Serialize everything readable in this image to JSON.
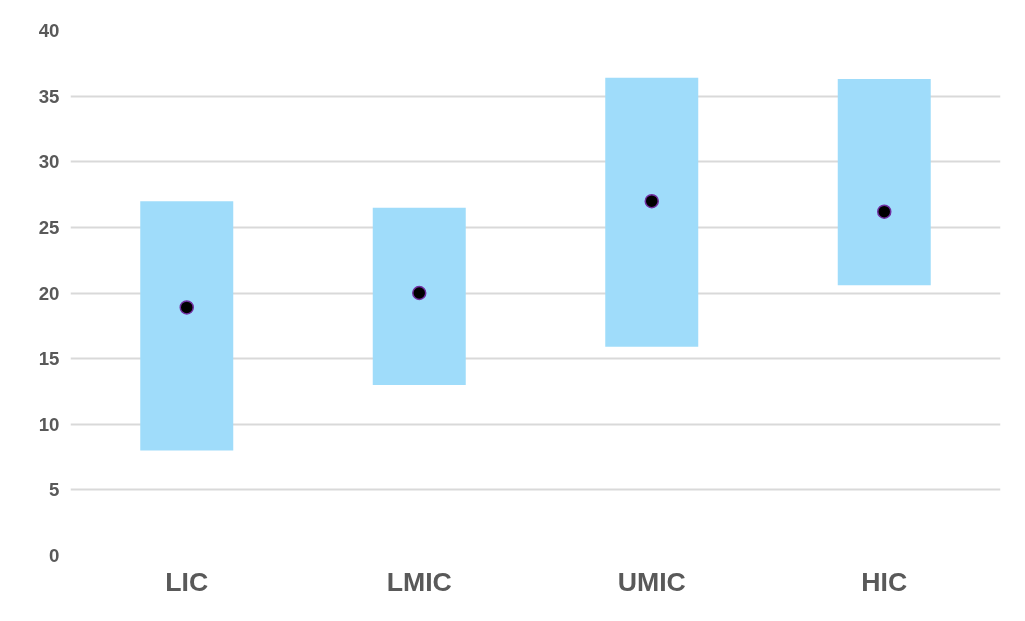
{
  "chart_data": {
    "type": "bar",
    "categories": [
      "LIC",
      "LMIC",
      "UMIC",
      "HIC"
    ],
    "series": [
      {
        "color": "#9fdcfa",
        "base": [
          8,
          13,
          15.9,
          20.6
        ],
        "values": [
          19,
          13.5,
          20.5,
          15.7
        ]
      },
      {
        "type": "scatter",
        "color": "#000000",
        "x": [
          "LIC",
          "LMIC",
          "UMIC",
          "HIC"
        ],
        "values": [
          18.9,
          20,
          27,
          26.2
        ]
      }
    ],
    "ylim": [
      0,
      40
    ],
    "yticks": [
      0,
      5,
      10,
      15,
      20,
      25,
      30,
      35,
      40
    ],
    "grid": "y",
    "marker": "circle"
  }
}
